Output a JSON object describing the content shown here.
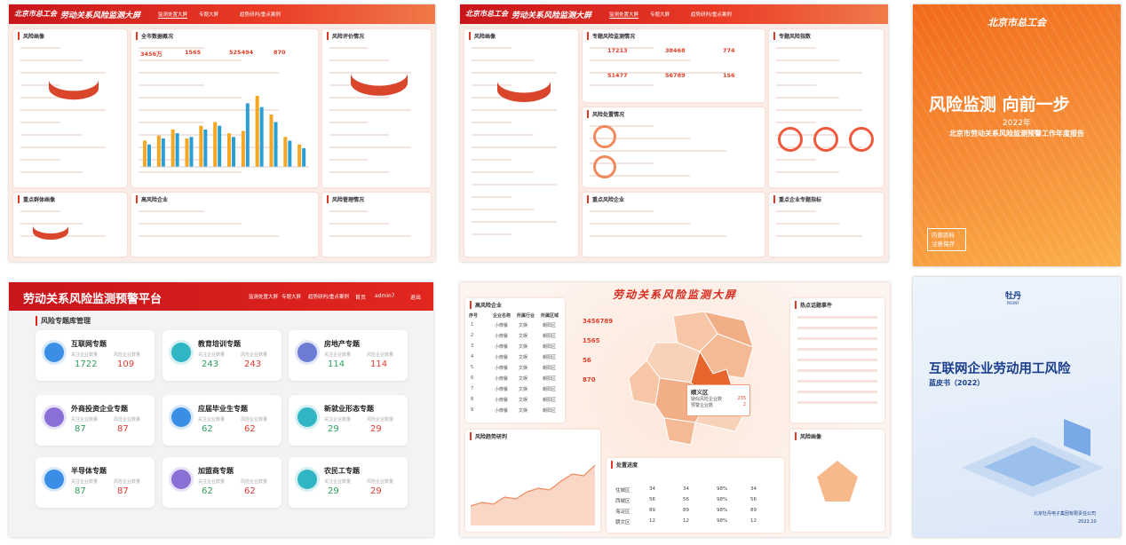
{
  "dashboard_1": {
    "logo": "北京市总工会",
    "title": "劳动关系风险监测大屏",
    "nav": [
      "监测处置大屏",
      "专题大屏",
      "趋势研判/重点案例"
    ],
    "panels": [
      "风险画像",
      "全市数据概况",
      "风险评价情况",
      "重点群体画像",
      "高风险企业",
      "风险管理情况"
    ],
    "stats": [
      "3456万",
      "1565",
      "525494",
      "870"
    ],
    "bars": {
      "series": [
        {
          "color": "#f5a623",
          "values": [
            35,
            42,
            50,
            38,
            55,
            60,
            45,
            48,
            95,
            70,
            40,
            30
          ]
        },
        {
          "color": "#2a9fd6",
          "values": [
            30,
            38,
            45,
            40,
            50,
            55,
            40,
            85,
            80,
            60,
            35,
            25
          ]
        }
      ]
    }
  },
  "dashboard_2": {
    "logo": "北京市总工会",
    "title": "劳动关系风险监测大屏",
    "nav": [
      "监测处置大屏",
      "专题大屏",
      "趋势研判/重点案例"
    ],
    "panels": [
      "风险画像",
      "专题风险监测情况",
      "专题风险指数",
      "风险处置情况",
      "重点风险企业",
      "重点企业专题指标"
    ],
    "stats": [
      "17213",
      "38468",
      "774",
      "51477",
      "56789",
      "156"
    ]
  },
  "cover_1": {
    "logo": "北京市总工会",
    "title": "风险监测 向前一步",
    "year": "2022年",
    "subtitle": "北京市劳动关系风险监测预警工作年度报告",
    "stamp": [
      "内部资料",
      "注意保存"
    ]
  },
  "platform": {
    "title": "劳动关系风险监测预警平台",
    "nav": [
      "监测处置大屏",
      "专题大屏",
      "趋势研判/重点案例"
    ],
    "home": "首页",
    "user": "admin7",
    "logout": "退出",
    "section": "风险专题库管理",
    "focus_label": "关注企业数量",
    "risk_label": "风险企业数量",
    "cards": [
      {
        "name": "互联网专题",
        "focus": "1722",
        "risk": "109"
      },
      {
        "name": "教育培训专题",
        "focus": "243",
        "risk": "243"
      },
      {
        "name": "房地产专题",
        "focus": "114",
        "risk": "114"
      },
      {
        "name": "外商投资企业专题",
        "focus": "87",
        "risk": "87"
      },
      {
        "name": "应届毕业生专题",
        "focus": "62",
        "risk": "62"
      },
      {
        "name": "新就业形态专题",
        "focus": "29",
        "risk": "29"
      },
      {
        "name": "半导体专题",
        "focus": "87",
        "risk": "87"
      },
      {
        "name": "加盟商专题",
        "focus": "62",
        "risk": "62"
      },
      {
        "name": "农民工专题",
        "focus": "29",
        "risk": "29"
      }
    ]
  },
  "big_screen": {
    "title": "劳动关系风险监测大屏",
    "panels": [
      "高风险企业",
      "热点话题事件",
      "风险趋势研判",
      "处置进度",
      "风险画像"
    ],
    "table_header": [
      "序号",
      "企业名称",
      "所属行业",
      "所属区域"
    ],
    "table_rows": [
      [
        "1",
        "小微餐",
        "文娱",
        "朝阳区"
      ],
      [
        "2",
        "小微餐",
        "文娱",
        "朝阳区"
      ],
      [
        "3",
        "小微餐",
        "文娱",
        "朝阳区"
      ],
      [
        "4",
        "小微餐",
        "文娱",
        "朝阳区"
      ],
      [
        "5",
        "小微餐",
        "文娱",
        "朝阳区"
      ],
      [
        "6",
        "小微餐",
        "文娱",
        "朝阳区"
      ],
      [
        "7",
        "小微餐",
        "文娱",
        "朝阳区"
      ],
      [
        "8",
        "小微餐",
        "文娱",
        "朝阳区"
      ],
      [
        "9",
        "小微餐",
        "文娱",
        "朝阳区"
      ]
    ],
    "stats": [
      "3456789",
      "1565",
      "56",
      "870"
    ],
    "popup": {
      "district": "顺义区",
      "rows": [
        [
          "疑似风险企业数",
          "235"
        ],
        [
          "预警企业数",
          "2"
        ]
      ]
    },
    "progress_rows": [
      [
        "住城区",
        "34",
        "34",
        "98%",
        "34"
      ],
      [
        "西城区",
        "56",
        "56",
        "98%",
        "56"
      ],
      [
        "海淀区",
        "89",
        "89",
        "98%",
        "89"
      ],
      [
        "朝文区",
        "12",
        "12",
        "98%",
        "12"
      ]
    ],
    "trend": {
      "color": "#f08a5d",
      "values": [
        10,
        12,
        11,
        15,
        14,
        18,
        20,
        19,
        24,
        28,
        27,
        33
      ]
    }
  },
  "cover_2": {
    "logo": "牡丹",
    "logo_en": "PEONY",
    "title": "互联网企业劳动用工风险",
    "subtitle": "蓝皮书（2022）",
    "publisher": "北京牡丹电子集团有限责任公司",
    "date": "2022.10"
  }
}
